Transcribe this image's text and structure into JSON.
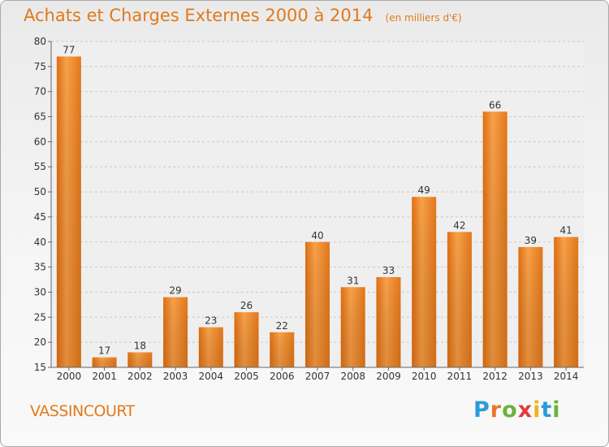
{
  "header": {
    "title": "Achats et Charges Externes 2000 à 2014",
    "subtitle": "(en milliers d'€)"
  },
  "footer": {
    "commune": "VASSINCOURT",
    "brand_letters": [
      "P",
      "r",
      "o",
      "x",
      "i",
      "t",
      "i"
    ],
    "brand_colors": [
      "#2b9bd8",
      "#e8762a",
      "#6ab23e",
      "#e13b3b",
      "#f2b21a",
      "#2b9bd8",
      "#6ab23e"
    ]
  },
  "chart_data": {
    "type": "bar",
    "categories": [
      "2000",
      "2001",
      "2002",
      "2003",
      "2004",
      "2005",
      "2006",
      "2007",
      "2008",
      "2009",
      "2010",
      "2011",
      "2012",
      "2013",
      "2014"
    ],
    "values": [
      77,
      17,
      18,
      29,
      23,
      26,
      22,
      40,
      31,
      33,
      49,
      42,
      66,
      39,
      41
    ],
    "data_labels": [
      "77",
      "17",
      "18",
      "29",
      "23",
      "26",
      "22",
      "40",
      "31",
      "33",
      "49",
      "42",
      "66",
      "39",
      "41"
    ],
    "yticks": [
      "15",
      "20",
      "25",
      "30",
      "35",
      "40",
      "45",
      "50",
      "55",
      "60",
      "65",
      "70",
      "75",
      "80"
    ],
    "ylim": [
      15,
      80
    ],
    "grid": true,
    "bar_color": "#f08a24"
  }
}
